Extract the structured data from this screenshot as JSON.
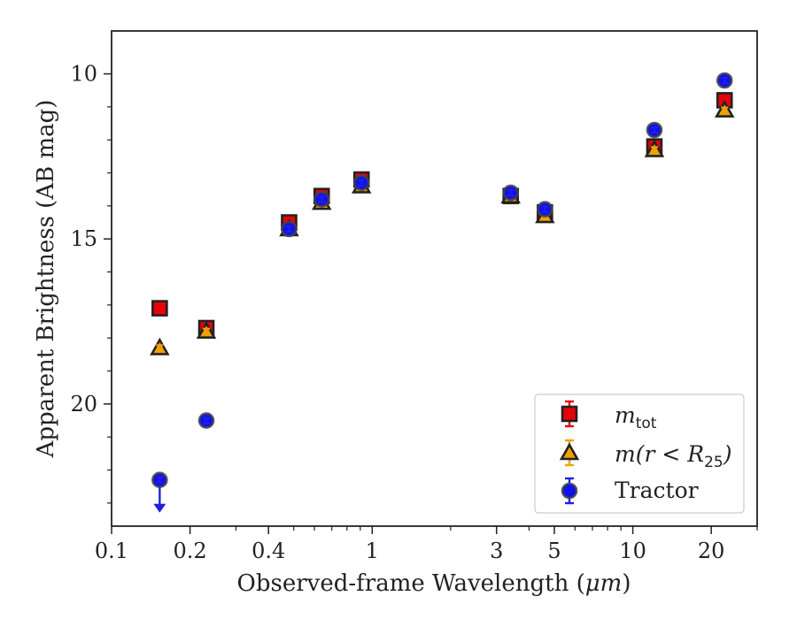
{
  "chart_data": {
    "type": "scatter",
    "xlabel_text": "Observed-frame Wavelength (",
    "xlabel_unit": "μm",
    "xlabel_close": ")",
    "ylabel": "Apparent Brightness (AB mag)",
    "xscale": "log",
    "xlim": [
      0.1,
      30
    ],
    "ylim": [
      23.7,
      8.7
    ],
    "y_inverted": true,
    "grid": false,
    "legend_position": "lower right",
    "x_ticks": [
      {
        "value": 0.1,
        "label": "0.1"
      },
      {
        "value": 0.2,
        "label": "0.2"
      },
      {
        "value": 0.4,
        "label": "0.4"
      },
      {
        "value": 1,
        "label": "1"
      },
      {
        "value": 3,
        "label": "3"
      },
      {
        "value": 5,
        "label": "5"
      },
      {
        "value": 10,
        "label": "10"
      },
      {
        "value": 20,
        "label": "20"
      }
    ],
    "y_ticks": [
      {
        "value": 10,
        "label": "10"
      },
      {
        "value": 15,
        "label": "15"
      },
      {
        "value": 20,
        "label": "20"
      }
    ],
    "y_minor_ticks": [
      11,
      12,
      13,
      14,
      16,
      17,
      18,
      19,
      21,
      22,
      23
    ],
    "x_minor_ticks": [
      0.3,
      0.5,
      0.6,
      0.7,
      0.8,
      0.9,
      2,
      4,
      6,
      7,
      8,
      9,
      30
    ],
    "series": [
      {
        "key": "mtot",
        "legend_main": "m",
        "legend_sub": "tot",
        "marker": "square",
        "face_color": "#e8000b",
        "edge_color": "#222222",
        "err_color": "#e8000b",
        "points": [
          {
            "x": 0.153,
            "y": 17.1
          },
          {
            "x": 0.231,
            "y": 17.7
          },
          {
            "x": 0.48,
            "y": 14.5
          },
          {
            "x": 0.64,
            "y": 13.7
          },
          {
            "x": 0.91,
            "y": 13.2
          },
          {
            "x": 3.4,
            "y": 13.7
          },
          {
            "x": 4.6,
            "y": 14.2
          },
          {
            "x": 12.1,
            "y": 12.2
          },
          {
            "x": 22.5,
            "y": 10.8
          }
        ]
      },
      {
        "key": "mr25",
        "legend_main": "m(r < R",
        "legend_sub": "25",
        "legend_tail": ")",
        "marker": "triangle",
        "face_color": "#f0a000",
        "edge_color": "#222222",
        "err_color": "#f0a000",
        "points": [
          {
            "x": 0.153,
            "y": 18.3
          },
          {
            "x": 0.231,
            "y": 17.8
          },
          {
            "x": 0.48,
            "y": 14.7
          },
          {
            "x": 0.64,
            "y": 13.9
          },
          {
            "x": 0.91,
            "y": 13.4
          },
          {
            "x": 3.4,
            "y": 13.7
          },
          {
            "x": 4.6,
            "y": 14.3
          },
          {
            "x": 12.1,
            "y": 12.3
          },
          {
            "x": 22.5,
            "y": 11.1
          }
        ]
      },
      {
        "key": "tractor",
        "legend_main": "Tractor",
        "marker": "circle",
        "face_color": "#1010f0",
        "edge_color": "#444444",
        "err_color": "#2020e0",
        "points": [
          {
            "x": 0.153,
            "y": 22.3,
            "upper_limit": true
          },
          {
            "x": 0.231,
            "y": 20.5
          },
          {
            "x": 0.48,
            "y": 14.7
          },
          {
            "x": 0.64,
            "y": 13.8
          },
          {
            "x": 0.91,
            "y": 13.3
          },
          {
            "x": 3.4,
            "y": 13.6
          },
          {
            "x": 4.6,
            "y": 14.1
          },
          {
            "x": 12.1,
            "y": 11.7
          },
          {
            "x": 22.5,
            "y": 10.2
          }
        ]
      }
    ]
  }
}
